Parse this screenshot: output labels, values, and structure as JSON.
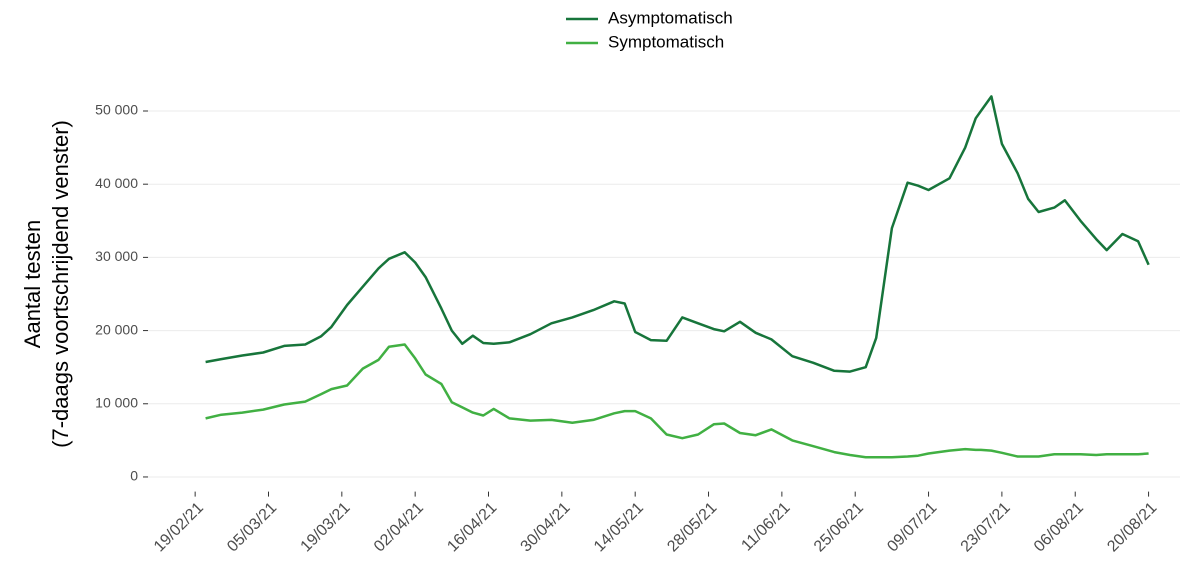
{
  "chart_data": {
    "type": "line",
    "ylabel": [
      "Aantal testen",
      "(7-daags voortschrijdend venster)"
    ],
    "x": [
      "21/02/21",
      "24/02/21",
      "28/02/21",
      "04/03/21",
      "08/03/21",
      "12/03/21",
      "15/03/21",
      "17/03/21",
      "20/03/21",
      "23/03/21",
      "26/03/21",
      "28/03/21",
      "31/03/21",
      "02/04/21",
      "04/04/21",
      "07/04/21",
      "09/04/21",
      "11/04/21",
      "13/04/21",
      "15/04/21",
      "17/04/21",
      "20/04/21",
      "24/04/21",
      "28/04/21",
      "02/05/21",
      "06/05/21",
      "10/05/21",
      "12/05/21",
      "14/05/21",
      "17/05/21",
      "20/05/21",
      "23/05/21",
      "26/05/21",
      "29/05/21",
      "31/05/21",
      "03/06/21",
      "06/06/21",
      "09/06/21",
      "13/06/21",
      "17/06/21",
      "21/06/21",
      "24/06/21",
      "27/06/21",
      "29/06/21",
      "02/07/21",
      "05/07/21",
      "07/07/21",
      "09/07/21",
      "13/07/21",
      "16/07/21",
      "18/07/21",
      "19/07/21",
      "21/07/21",
      "23/07/21",
      "26/07/21",
      "28/07/21",
      "30/07/21",
      "02/08/21",
      "04/08/21",
      "07/08/21",
      "10/08/21",
      "12/08/21",
      "15/08/21",
      "18/08/21",
      "20/08/21"
    ],
    "series": [
      {
        "name": "Asymptomatisch",
        "color": "#17753b",
        "values": [
          15700,
          16100,
          16600,
          17000,
          17900,
          18100,
          19200,
          20500,
          23500,
          26000,
          28500,
          29800,
          30700,
          29300,
          27300,
          23000,
          20000,
          18200,
          19300,
          18300,
          18200,
          18400,
          19500,
          21000,
          21800,
          22800,
          24000,
          23700,
          19800,
          18700,
          18600,
          21800,
          21000,
          20200,
          19900,
          21200,
          19700,
          18800,
          16500,
          15600,
          14500,
          14400,
          15000,
          19000,
          34000,
          40200,
          39800,
          39200,
          40800,
          45000,
          49000,
          50000,
          52000,
          45500,
          41500,
          38000,
          36200,
          36800,
          37800,
          35000,
          32500,
          31000,
          33200,
          32200,
          29000
        ]
      },
      {
        "name": "Symptomatisch",
        "color": "#41b043",
        "values": [
          8000,
          8500,
          8800,
          9200,
          9900,
          10300,
          11300,
          12000,
          12500,
          14800,
          16000,
          17800,
          18100,
          16200,
          14000,
          12700,
          10200,
          9500,
          8800,
          8400,
          9300,
          8000,
          7700,
          7800,
          7400,
          7800,
          8700,
          9000,
          9000,
          8000,
          5800,
          5300,
          5800,
          7200,
          7300,
          6000,
          5700,
          6500,
          5000,
          4200,
          3400,
          3000,
          2700,
          2700,
          2700,
          2800,
          2900,
          3200,
          3600,
          3800,
          3700,
          3700,
          3600,
          3300,
          2800,
          2800,
          2800,
          3100,
          3100,
          3100,
          3000,
          3100,
          3100,
          3100,
          3200
        ]
      }
    ],
    "xlim": [
      "10/02/21",
      "26/08/21"
    ],
    "xticks": [
      "19/02/21",
      "05/03/21",
      "19/03/21",
      "02/04/21",
      "16/04/21",
      "30/04/21",
      "14/05/21",
      "28/05/21",
      "11/06/21",
      "25/06/21",
      "09/07/21",
      "23/07/21",
      "06/08/21",
      "20/08/21"
    ],
    "ylim": [
      -2000,
      55000
    ],
    "yticks": [
      0,
      {
        "value": 10000,
        "label": "10 000"
      },
      {
        "value": 20000,
        "label": "20 000"
      },
      {
        "value": 30000,
        "label": "30 000"
      },
      {
        "value": 40000,
        "label": "40 000"
      },
      {
        "value": 50000,
        "label": "50 000"
      }
    ],
    "grid": true,
    "legend": "top"
  }
}
